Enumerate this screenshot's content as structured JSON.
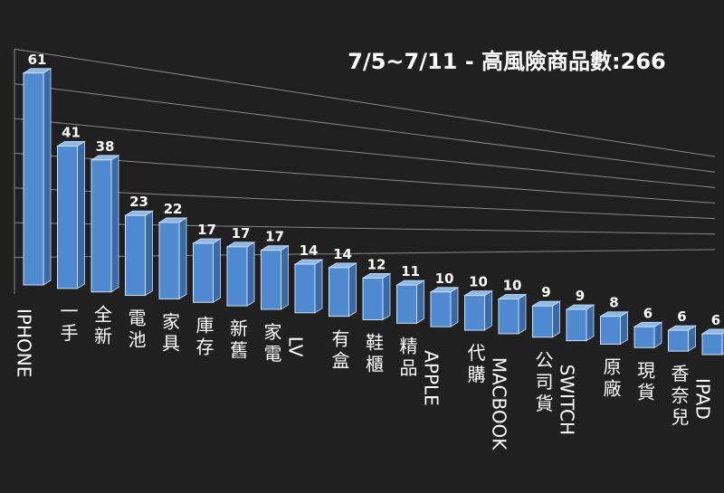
{
  "chart_data": {
    "type": "bar",
    "title": "7/5~7/11 - 高風險商品數:266",
    "xlabel": "",
    "ylabel": "",
    "ylim": [
      0,
      70
    ],
    "grid": true,
    "legend": "none",
    "categories": [
      "IPHONE",
      "一手",
      "全新",
      "電池",
      "家具",
      "庫存",
      "新舊",
      "家電",
      "LV",
      "有盒",
      "鞋櫃",
      "精品",
      "APPLE",
      "代購",
      "MACBOOK",
      "公司貨",
      "SWITCH",
      "原廠",
      "現貨",
      "香奈兒",
      "IPAD"
    ],
    "values": [
      61,
      41,
      38,
      23,
      22,
      17,
      17,
      17,
      14,
      14,
      12,
      11,
      10,
      10,
      10,
      9,
      9,
      8,
      6,
      6,
      6
    ],
    "colors": {
      "background": "#202020",
      "bar_front": "#4f89d0",
      "bar_side": "#3a6aa6",
      "bar_top": "#8fb8ea",
      "bar_edge": "#cfe0f7",
      "grid": "#8a8a8a",
      "text": "#ffffff"
    }
  }
}
